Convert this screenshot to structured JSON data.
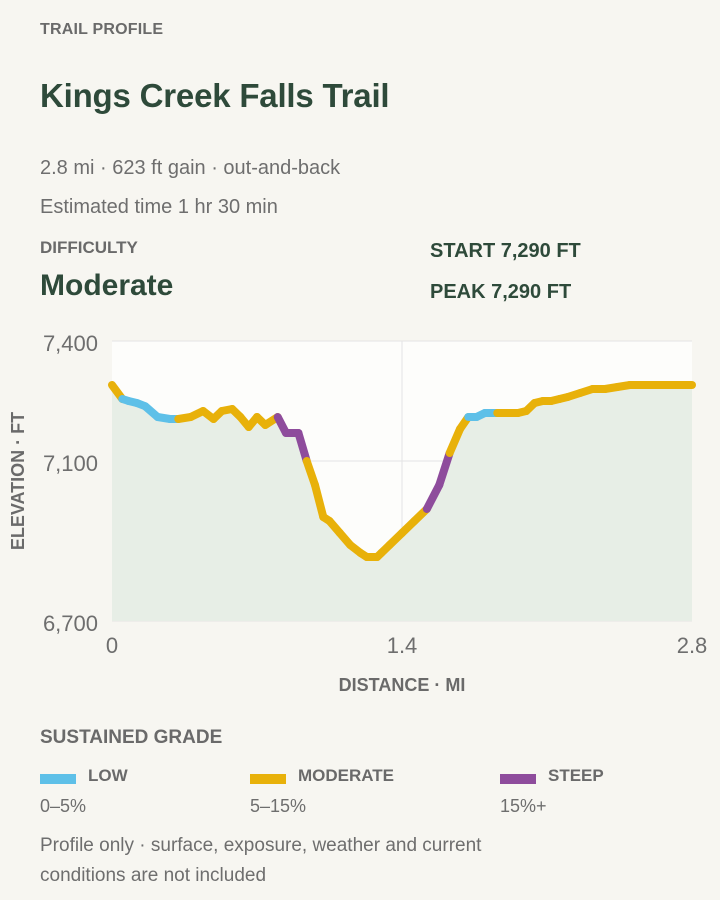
{
  "header": {
    "eyebrow": "TRAIL PROFILE",
    "title": "Kings Creek Falls Trail",
    "summary": "2.8 mi · 623 ft gain · out-and-back",
    "time": "Estimated time 1 hr 30 min"
  },
  "difficulty": {
    "label": "DIFFICULTY",
    "value": "Moderate"
  },
  "stats": {
    "start": "START 7,290 FT",
    "peak": "PEAK 7,290 FT"
  },
  "legend": {
    "title": "SUSTAINED GRADE",
    "items": [
      {
        "name": "LOW",
        "range": "0–5%",
        "color": "#5ec0e8"
      },
      {
        "name": "MODERATE",
        "range": "5–15%",
        "color": "#e8b10a"
      },
      {
        "name": "STEEP",
        "range": "15%+",
        "color": "#8e4c9c"
      }
    ]
  },
  "note": "Profile only · surface, exposure, weather and current conditions are not included",
  "chart_data": {
    "type": "area",
    "title": "",
    "xlabel": "DISTANCE · MI",
    "ylabel": "ELEVATION · FT",
    "xlim": [
      0,
      2.8
    ],
    "ylim": [
      6700,
      7400
    ],
    "x_ticks": [
      "0",
      "1.4",
      "2.8"
    ],
    "y_ticks": [
      "7,400",
      "7,100",
      "6,700"
    ],
    "x_tick_values": [
      0,
      1.4,
      2.8
    ],
    "y_tick_values": [
      7400,
      7100,
      6700
    ],
    "grid": true,
    "colors": {
      "area": "#e7eee6",
      "plot_bg": "#fdfdfb",
      "grid": "#e4e4e4",
      "low": "#5ec0e8",
      "moderate": "#e8b10a",
      "steep": "#8e4c9c"
    },
    "series": [
      {
        "x": [
          0,
          0.05,
          0.08,
          0.12,
          0.16,
          0.22,
          0.28,
          0.32,
          0.38,
          0.44,
          0.49,
          0.53,
          0.58,
          0.62,
          0.66,
          0.7,
          0.74,
          0.8,
          0.84,
          0.9,
          0.94,
          0.98,
          1.02,
          1.05,
          1.1,
          1.15,
          1.2,
          1.23,
          1.28,
          1.3,
          1.34,
          1.4,
          1.46,
          1.52,
          1.58,
          1.63,
          1.68,
          1.72,
          1.76,
          1.8,
          1.86,
          1.92,
          1.96,
          2.0,
          2.04,
          2.08,
          2.12,
          2.16,
          2.2,
          2.26,
          2.32,
          2.38,
          2.44,
          2.5,
          2.56,
          2.62,
          2.68,
          2.74,
          2.8
        ],
        "y": [
          7290,
          7255,
          7250,
          7245,
          7237,
          7210,
          7205,
          7205,
          7210,
          7225,
          7205,
          7225,
          7230,
          7210,
          7185,
          7210,
          7190,
          7210,
          7170,
          7170,
          7100,
          7040,
          6960,
          6950,
          6920,
          6890,
          6870,
          6860,
          6860,
          6870,
          6890,
          6920,
          6950,
          6980,
          7040,
          7120,
          7180,
          7210,
          7210,
          7220,
          7220,
          7220,
          7220,
          7225,
          7245,
          7250,
          7250,
          7255,
          7260,
          7270,
          7280,
          7280,
          7285,
          7290,
          7290,
          7290,
          7290,
          7290,
          7290
        ],
        "grade": [
          "moderate",
          "low",
          "low",
          "low",
          "low",
          "low",
          "low",
          "moderate",
          "moderate",
          "moderate",
          "moderate",
          "moderate",
          "moderate",
          "moderate",
          "moderate",
          "moderate",
          "moderate",
          "steep",
          "steep",
          "steep",
          "moderate",
          "moderate",
          "moderate",
          "moderate",
          "moderate",
          "moderate",
          "moderate",
          "moderate",
          "moderate",
          "moderate",
          "moderate",
          "moderate",
          "moderate",
          "steep",
          "steep",
          "moderate",
          "moderate",
          "low",
          "low",
          "low",
          "moderate",
          "moderate",
          "moderate",
          "moderate",
          "moderate",
          "moderate",
          "moderate",
          "moderate",
          "moderate",
          "moderate",
          "moderate",
          "moderate",
          "moderate",
          "moderate",
          "moderate",
          "moderate",
          "moderate",
          "moderate",
          "moderate"
        ]
      }
    ]
  }
}
